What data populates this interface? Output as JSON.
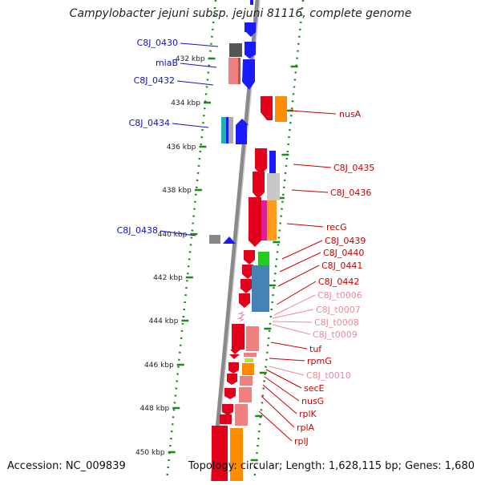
{
  "title": "Campylobacter jejuni subsp. jejuni 81116, complete genome",
  "footer": {
    "accession": "Accession: NC_009839",
    "topology": "Topology: circular; Length: 1,628,115 bp; Genes: 1,680"
  },
  "ticks": [
    "432 kbp",
    "434 kbp",
    "436 kbp",
    "438 kbp",
    "440 kbp",
    "442 kbp",
    "444 kbp",
    "446 kbp",
    "448 kbp",
    "450 kbp"
  ],
  "colors": {
    "red": "#e3001b",
    "blue": "#1a1aff",
    "orange": "#ff8c00",
    "pink": "#f08080",
    "grey": "#999999",
    "label_blue": "#1111cc",
    "label_red": "#cc0000",
    "label_pink": "#ee8899",
    "green": "#228822"
  },
  "labels_left": [
    "C8J_0430",
    "miaB",
    "C8J_0432",
    "C8J_0434",
    "C8J_0438"
  ],
  "labels_right": [
    "nusA",
    "C8J_0435",
    "C8J_0436",
    "recG",
    "C8J_0439",
    "C8J_0440",
    "C8J_0441",
    "C8J_0442",
    "C8J_t0006",
    "C8J_t0007",
    "C8J_t0008",
    "C8J_t0009",
    "tuf",
    "rpmG",
    "C8J_t0010",
    "secE",
    "nusG",
    "rplK",
    "rplA",
    "rplJ"
  ]
}
